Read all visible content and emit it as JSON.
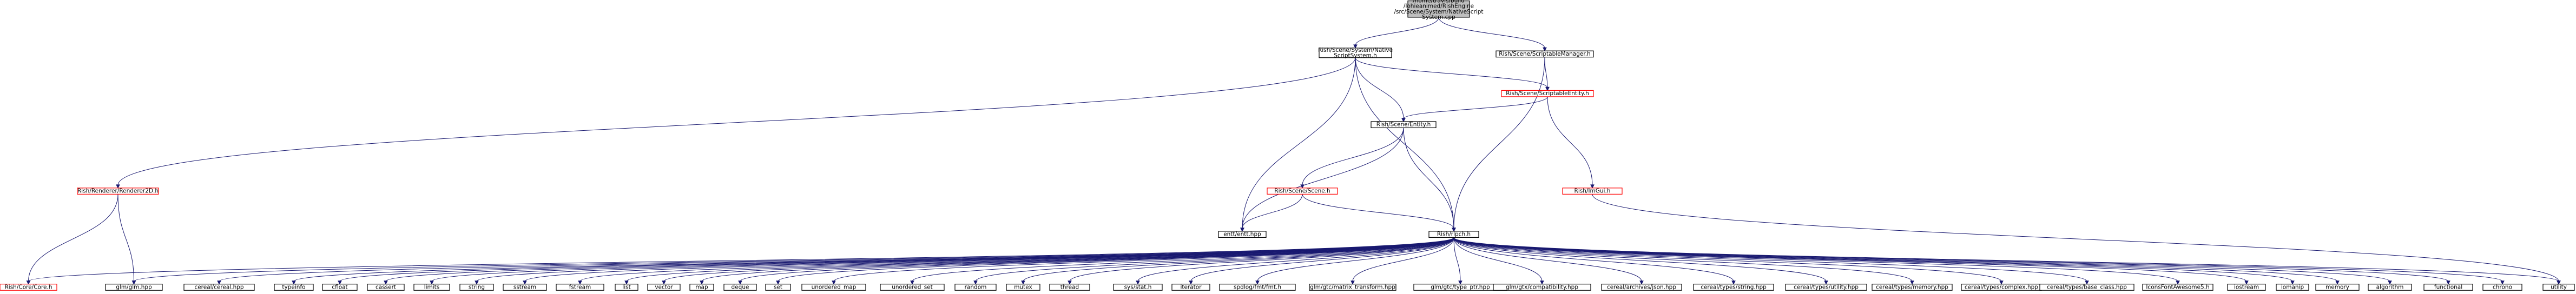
{
  "colors": {
    "edge": "#191970",
    "box_default": "#000000",
    "box_truncated": "#ff0000",
    "box_root_fill": "#bfbfbf",
    "box_fill": "#ffffff",
    "text": "#000000"
  },
  "nodes": [
    {
      "id": "root",
      "lines": [
        "/home/travis/build",
        "/lohieanimed/RishEngine",
        "/src/Scene/System/NativeScript",
        "System.cpp"
      ],
      "style": "root"
    },
    {
      "id": "nss",
      "lines": [
        "Rish/Scene/System/Native",
        "ScriptSystem.h"
      ],
      "style": "normal"
    },
    {
      "id": "sm",
      "lines": [
        "Rish/Scene/ScriptableManager.h"
      ],
      "style": "normal"
    },
    {
      "id": "se",
      "lines": [
        "Rish/Scene/ScriptableEntity.h"
      ],
      "style": "truncated"
    },
    {
      "id": "ent",
      "lines": [
        "Rish/Scene/Entity.h"
      ],
      "style": "normal"
    },
    {
      "id": "r2d",
      "lines": [
        "Rish/Renderer/Renderer2D.h"
      ],
      "style": "truncated"
    },
    {
      "id": "imgui",
      "lines": [
        "Rish/ImGui.h"
      ],
      "style": "truncated"
    },
    {
      "id": "scene",
      "lines": [
        "Rish/Scene/Scene.h"
      ],
      "style": "truncated"
    },
    {
      "id": "entt",
      "lines": [
        "entt/entt.hpp"
      ],
      "style": "normal"
    },
    {
      "id": "rlpch",
      "lines": [
        "Rish/rlpch.h"
      ],
      "style": "normal"
    },
    {
      "id": "core",
      "lines": [
        "Rish/Core/Core.h"
      ],
      "style": "truncated"
    },
    {
      "id": "glm",
      "lines": [
        "glm/glm.hpp"
      ],
      "style": "normal"
    },
    {
      "id": "cereal",
      "lines": [
        "cereal/cereal.hpp"
      ],
      "style": "normal"
    },
    {
      "id": "typeinfo",
      "lines": [
        "typeinfo"
      ],
      "style": "normal"
    },
    {
      "id": "cfloat",
      "lines": [
        "cfloat"
      ],
      "style": "normal"
    },
    {
      "id": "cassert",
      "lines": [
        "cassert"
      ],
      "style": "normal"
    },
    {
      "id": "limits",
      "lines": [
        "limits"
      ],
      "style": "normal"
    },
    {
      "id": "string",
      "lines": [
        "string"
      ],
      "style": "normal"
    },
    {
      "id": "sstream",
      "lines": [
        "sstream"
      ],
      "style": "normal"
    },
    {
      "id": "fstream",
      "lines": [
        "fstream"
      ],
      "style": "normal"
    },
    {
      "id": "list",
      "lines": [
        "list"
      ],
      "style": "normal"
    },
    {
      "id": "vector",
      "lines": [
        "vector"
      ],
      "style": "normal"
    },
    {
      "id": "map",
      "lines": [
        "map"
      ],
      "style": "normal"
    },
    {
      "id": "deque",
      "lines": [
        "deque"
      ],
      "style": "normal"
    },
    {
      "id": "set",
      "lines": [
        "set"
      ],
      "style": "normal"
    },
    {
      "id": "umap",
      "lines": [
        "unordered_map"
      ],
      "style": "normal"
    },
    {
      "id": "uset",
      "lines": [
        "unordered_set"
      ],
      "style": "normal"
    },
    {
      "id": "random",
      "lines": [
        "random"
      ],
      "style": "normal"
    },
    {
      "id": "mutex",
      "lines": [
        "mutex"
      ],
      "style": "normal"
    },
    {
      "id": "thread",
      "lines": [
        "thread"
      ],
      "style": "normal"
    },
    {
      "id": "sysstat",
      "lines": [
        "sys/stat.h"
      ],
      "style": "normal"
    },
    {
      "id": "iterator",
      "lines": [
        "iterator"
      ],
      "style": "normal"
    },
    {
      "id": "spdlog",
      "lines": [
        "spdlog/fmt/fmt.h"
      ],
      "style": "normal"
    },
    {
      "id": "glmmt",
      "lines": [
        "glm/gtc/matrix_transform.hpp"
      ],
      "style": "normal"
    },
    {
      "id": "glmtp",
      "lines": [
        "glm/gtc/type_ptr.hpp"
      ],
      "style": "normal"
    },
    {
      "id": "glmcomp",
      "lines": [
        "glm/gtx/compatibility.hpp"
      ],
      "style": "normal"
    },
    {
      "id": "cjson",
      "lines": [
        "cereal/archives/json.hpp"
      ],
      "style": "normal"
    },
    {
      "id": "cstring",
      "lines": [
        "cereal/types/string.hpp"
      ],
      "style": "normal"
    },
    {
      "id": "cutility",
      "lines": [
        "cereal/types/utility.hpp"
      ],
      "style": "normal"
    },
    {
      "id": "cmemory",
      "lines": [
        "cereal/types/memory.hpp"
      ],
      "style": "normal"
    },
    {
      "id": "ccomplex",
      "lines": [
        "cereal/types/complex.hpp"
      ],
      "style": "normal"
    },
    {
      "id": "cbase",
      "lines": [
        "cereal/types/base_class.hpp"
      ],
      "style": "normal"
    },
    {
      "id": "icons",
      "lines": [
        "IconsFontAwesome5.h"
      ],
      "style": "normal"
    },
    {
      "id": "iostream",
      "lines": [
        "iostream"
      ],
      "style": "normal"
    },
    {
      "id": "iomanip",
      "lines": [
        "iomanip"
      ],
      "style": "normal"
    },
    {
      "id": "memory",
      "lines": [
        "memory"
      ],
      "style": "normal"
    },
    {
      "id": "algorithm",
      "lines": [
        "algorithm"
      ],
      "style": "normal"
    },
    {
      "id": "functional",
      "lines": [
        "functional"
      ],
      "style": "normal"
    },
    {
      "id": "chrono",
      "lines": [
        "chrono"
      ],
      "style": "normal"
    },
    {
      "id": "utility",
      "lines": [
        "utility"
      ],
      "style": "normal"
    }
  ],
  "edges": [
    [
      "root",
      "nss"
    ],
    [
      "root",
      "sm"
    ],
    [
      "nss",
      "r2d"
    ],
    [
      "nss",
      "se"
    ],
    [
      "nss",
      "ent"
    ],
    [
      "nss",
      "entt"
    ],
    [
      "nss",
      "rlpch"
    ],
    [
      "sm",
      "se"
    ],
    [
      "sm",
      "rlpch"
    ],
    [
      "se",
      "ent"
    ],
    [
      "se",
      "imgui"
    ],
    [
      "ent",
      "scene"
    ],
    [
      "ent",
      "entt"
    ],
    [
      "ent",
      "rlpch"
    ],
    [
      "scene",
      "entt"
    ],
    [
      "scene",
      "rlpch"
    ],
    [
      "r2d",
      "core"
    ],
    [
      "r2d",
      "glm"
    ],
    [
      "imgui",
      "utility"
    ],
    [
      "rlpch",
      "core"
    ],
    [
      "rlpch",
      "glm"
    ],
    [
      "rlpch",
      "cereal"
    ],
    [
      "rlpch",
      "typeinfo"
    ],
    [
      "rlpch",
      "cfloat"
    ],
    [
      "rlpch",
      "cassert"
    ],
    [
      "rlpch",
      "limits"
    ],
    [
      "rlpch",
      "string"
    ],
    [
      "rlpch",
      "sstream"
    ],
    [
      "rlpch",
      "fstream"
    ],
    [
      "rlpch",
      "list"
    ],
    [
      "rlpch",
      "vector"
    ],
    [
      "rlpch",
      "map"
    ],
    [
      "rlpch",
      "deque"
    ],
    [
      "rlpch",
      "set"
    ],
    [
      "rlpch",
      "umap"
    ],
    [
      "rlpch",
      "uset"
    ],
    [
      "rlpch",
      "random"
    ],
    [
      "rlpch",
      "mutex"
    ],
    [
      "rlpch",
      "thread"
    ],
    [
      "rlpch",
      "sysstat"
    ],
    [
      "rlpch",
      "iterator"
    ],
    [
      "rlpch",
      "spdlog"
    ],
    [
      "rlpch",
      "glmmt"
    ],
    [
      "rlpch",
      "glmtp"
    ],
    [
      "rlpch",
      "glmcomp"
    ],
    [
      "rlpch",
      "cjson"
    ],
    [
      "rlpch",
      "cstring"
    ],
    [
      "rlpch",
      "cutility"
    ],
    [
      "rlpch",
      "cmemory"
    ],
    [
      "rlpch",
      "ccomplex"
    ],
    [
      "rlpch",
      "cbase"
    ],
    [
      "rlpch",
      "icons"
    ],
    [
      "rlpch",
      "iostream"
    ],
    [
      "rlpch",
      "iomanip"
    ],
    [
      "rlpch",
      "memory"
    ],
    [
      "rlpch",
      "algorithm"
    ],
    [
      "rlpch",
      "functional"
    ],
    [
      "rlpch",
      "chrono"
    ],
    [
      "rlpch",
      "utility"
    ]
  ]
}
